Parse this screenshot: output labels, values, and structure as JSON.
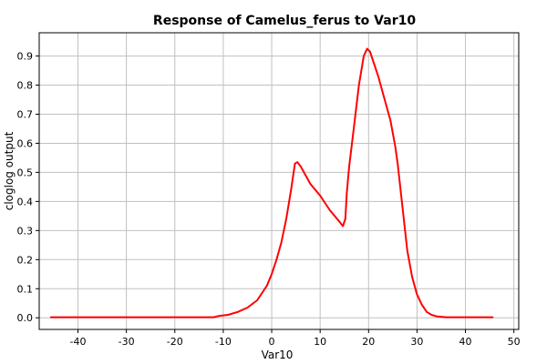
{
  "chart_data": {
    "type": "line",
    "title": "Response of Camelus_ferus to Var10",
    "xlabel": "Var10",
    "ylabel": "cloglog output",
    "xlim": [
      -48,
      51
    ],
    "ylim": [
      -0.04,
      0.98
    ],
    "grid": true,
    "x_ticks": [
      -40,
      -30,
      -20,
      -10,
      0,
      10,
      20,
      30,
      40,
      50
    ],
    "y_ticks": [
      0.0,
      0.1,
      0.2,
      0.3,
      0.4,
      0.5,
      0.6,
      0.7,
      0.8,
      0.9
    ],
    "y_tick_labels": [
      "0.0",
      "0.1",
      "0.2",
      "0.3",
      "0.4",
      "0.5",
      "0.6",
      "0.7",
      "0.8",
      "0.9"
    ],
    "series": [
      {
        "color": "#ff0000",
        "x": [
          -45.6,
          -30,
          -20,
          -12,
          -11,
          -9,
          -7,
          -5,
          -3,
          -1,
          0,
          1,
          2,
          3,
          4,
          4.8,
          5.3,
          6,
          7,
          8,
          10,
          12,
          14,
          14.7,
          15.2,
          15.5,
          16,
          17,
          18,
          19,
          19.7,
          20.3,
          21,
          22,
          23,
          24,
          24.5,
          25.5,
          26,
          27,
          28,
          29,
          30,
          31,
          32,
          33,
          34,
          36,
          40,
          45.6
        ],
        "y": [
          0.002,
          0.002,
          0.002,
          0.002,
          0.006,
          0.01,
          0.02,
          0.035,
          0.06,
          0.11,
          0.15,
          0.2,
          0.26,
          0.34,
          0.44,
          0.53,
          0.535,
          0.52,
          0.49,
          0.46,
          0.42,
          0.37,
          0.33,
          0.315,
          0.34,
          0.43,
          0.52,
          0.66,
          0.8,
          0.9,
          0.925,
          0.915,
          0.88,
          0.83,
          0.77,
          0.71,
          0.68,
          0.59,
          0.53,
          0.38,
          0.23,
          0.14,
          0.08,
          0.045,
          0.02,
          0.01,
          0.005,
          0.002,
          0.002,
          0.002
        ]
      }
    ]
  }
}
